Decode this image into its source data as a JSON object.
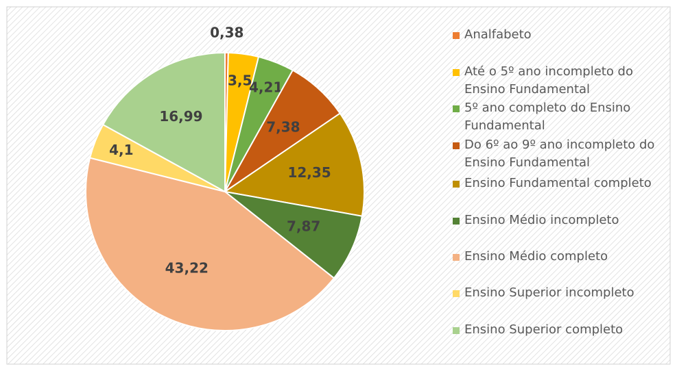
{
  "chart_data": {
    "type": "pie",
    "categories": [
      "Analfabeto",
      "Até o 5º ano incompleto do Ensino Fundamental",
      "5º  ano completo do Ensino Fundamental",
      "Do 6º ao 9º ano incompleto do Ensino Fundamental",
      "Ensino Fundamental completo",
      "Ensino Médio incompleto",
      "Ensino Médio completo",
      "Ensino Superior incompleto",
      "Ensino Superior completo"
    ],
    "values": [
      0.38,
      3.5,
      4.21,
      7.38,
      12.35,
      7.87,
      43.22,
      4.1,
      16.99
    ],
    "value_labels": [
      "0,38",
      "3,5",
      "4,21",
      "7,38",
      "12,35",
      "7,87",
      "43,22",
      "4,1",
      "16,99"
    ],
    "colors": [
      "#ed7d31",
      "#ffc000",
      "#70ad47",
      "#c55a11",
      "#bf8f00",
      "#548235",
      "#f4b183",
      "#ffd966",
      "#a9d18e"
    ],
    "legend": "right"
  }
}
